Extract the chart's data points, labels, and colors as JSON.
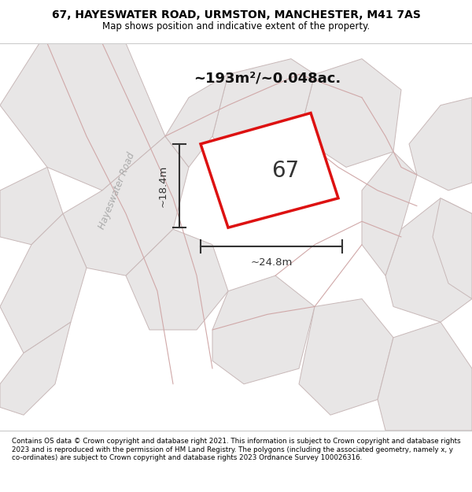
{
  "title_line1": "67, HAYESWATER ROAD, URMSTON, MANCHESTER, M41 7AS",
  "title_line2": "Map shows position and indicative extent of the property.",
  "footer_text": "Contains OS data © Crown copyright and database right 2021. This information is subject to Crown copyright and database rights 2023 and is reproduced with the permission of HM Land Registry. The polygons (including the associated geometry, namely x, y co-ordinates) are subject to Crown copyright and database rights 2023 Ordnance Survey 100026316.",
  "map_bg_color": "#f5f3f3",
  "plot_label": "67",
  "area_text": "~193m²/~0.048ac.",
  "dim_width_text": "~24.8m",
  "dim_height_text": "~18.4m",
  "road_label": "Hayeswater Road",
  "neighbor_fill": "#e8e6e6",
  "neighbor_stroke": "#c8b8b8",
  "road_line_color": "#d0a8a8",
  "plot_edge_color": "#dd1111",
  "plot_fill_color": "#ffffff",
  "dim_color": "#333333",
  "road_text_color": "#aaaaaa",
  "label_color": "#333333"
}
